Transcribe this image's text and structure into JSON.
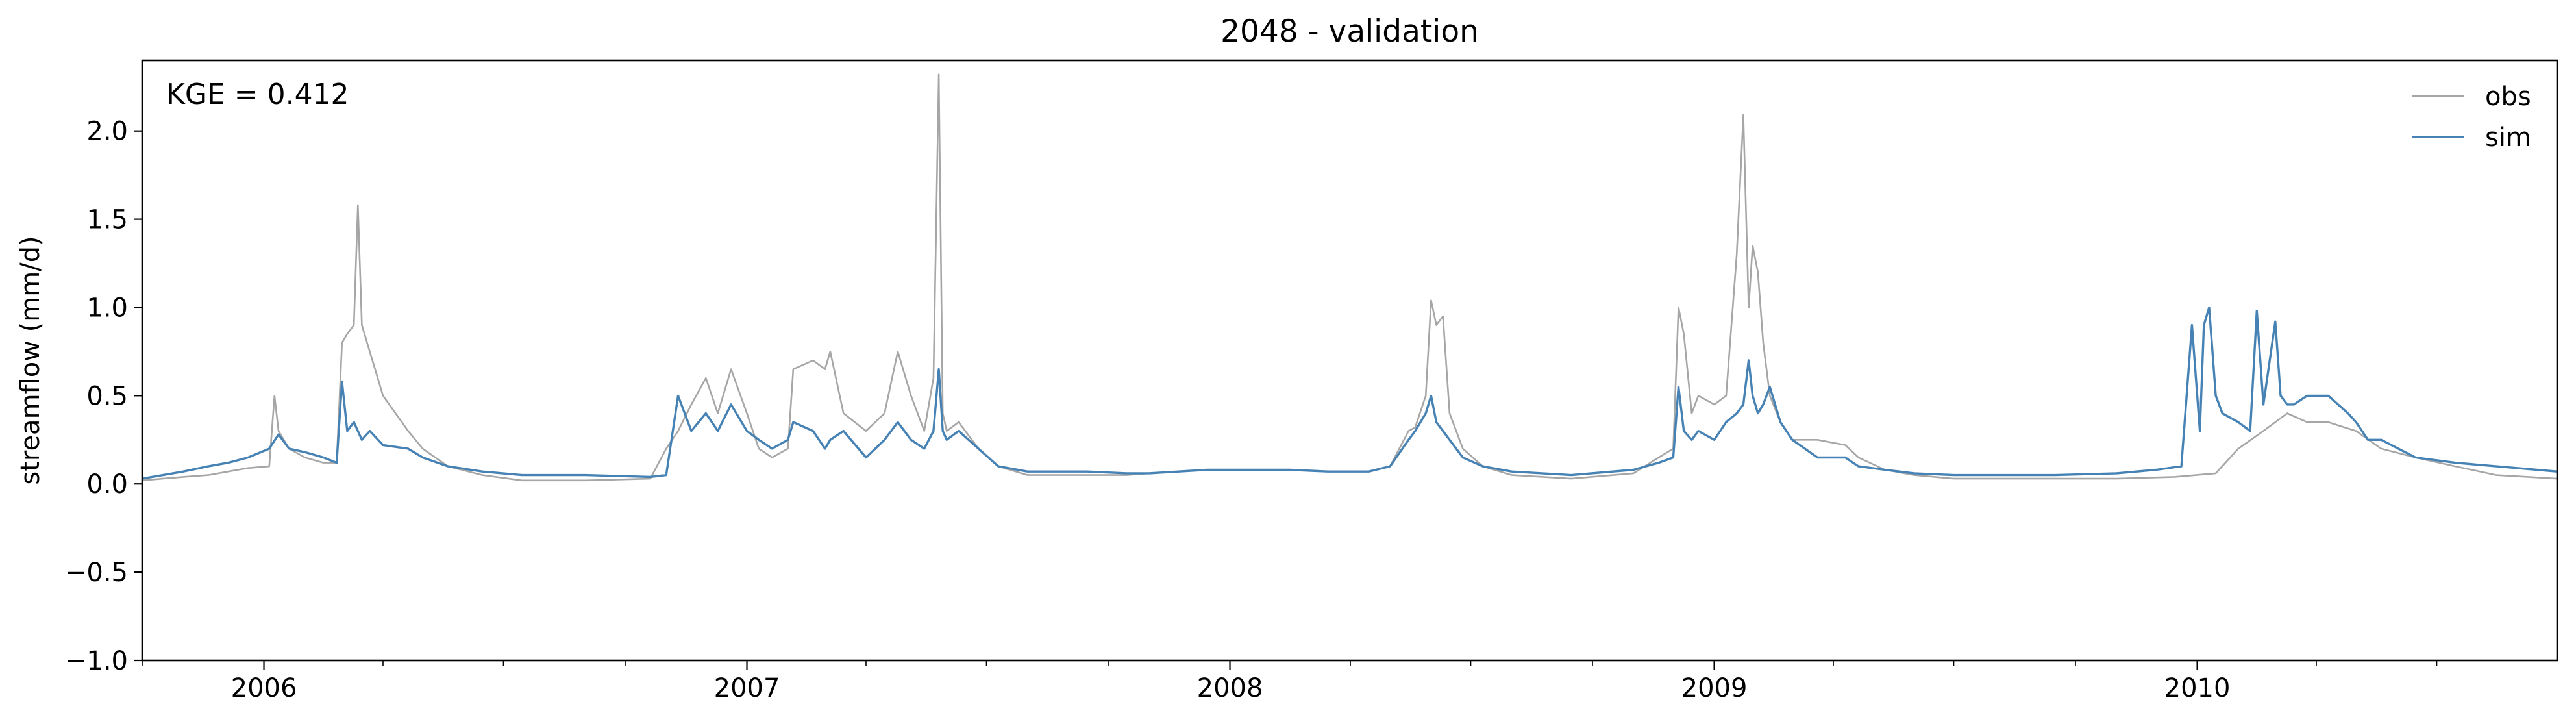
{
  "chart_data": {
    "type": "line",
    "title": "2048 - validation",
    "xlabel": "",
    "ylabel": "streamflow (mm/d)",
    "annotation": "KGE = 0.412",
    "xlim": [
      "2005-10-01",
      "2010-09-30"
    ],
    "ylim": [
      -1.0,
      2.4
    ],
    "y_ticks": [
      -1.0,
      -0.5,
      0.0,
      0.5,
      1.0,
      1.5,
      2.0
    ],
    "y_tick_labels": [
      "−1.0",
      "−0.5",
      "0.0",
      "0.5",
      "1.0",
      "1.5",
      "2.0"
    ],
    "x_ticks": [
      "2006-01-01",
      "2007-01-01",
      "2008-01-01",
      "2009-01-01",
      "2010-01-01"
    ],
    "x_tick_labels": [
      "2006",
      "2007",
      "2008",
      "2009",
      "2010"
    ],
    "legend_position": "top-right",
    "grid": false,
    "series": [
      {
        "name": "obs",
        "color": "#a6a6a6",
        "x": [
          "2005-10-01",
          "2005-11-01",
          "2005-11-20",
          "2005-12-05",
          "2005-12-20",
          "2006-01-05",
          "2006-01-09",
          "2006-01-12",
          "2006-01-20",
          "2006-02-01",
          "2006-02-15",
          "2006-02-25",
          "2006-03-01",
          "2006-03-05",
          "2006-03-10",
          "2006-03-13",
          "2006-03-16",
          "2006-03-20",
          "2006-04-01",
          "2006-04-20",
          "2006-05-01",
          "2006-05-20",
          "2006-06-15",
          "2006-07-15",
          "2006-09-01",
          "2006-10-20",
          "2006-11-01",
          "2006-11-10",
          "2006-11-20",
          "2006-12-01",
          "2006-12-10",
          "2006-12-20",
          "2007-01-01",
          "2007-01-10",
          "2007-01-20",
          "2007-02-01",
          "2007-02-05",
          "2007-02-20",
          "2007-03-01",
          "2007-03-05",
          "2007-03-15",
          "2007-04-01",
          "2007-04-15",
          "2007-04-25",
          "2007-05-05",
          "2007-05-15",
          "2007-05-22",
          "2007-05-26",
          "2007-05-29",
          "2007-06-01",
          "2007-06-10",
          "2007-06-25",
          "2007-07-10",
          "2007-08-01",
          "2007-09-15",
          "2007-10-15",
          "2007-11-01",
          "2007-12-15",
          "2008-02-15",
          "2008-03-15",
          "2008-04-15",
          "2008-05-01",
          "2008-05-15",
          "2008-05-20",
          "2008-05-28",
          "2008-06-01",
          "2008-06-05",
          "2008-06-10",
          "2008-06-15",
          "2008-06-25",
          "2008-07-10",
          "2008-08-01",
          "2008-09-15",
          "2008-11-01",
          "2008-11-20",
          "2008-12-01",
          "2008-12-05",
          "2008-12-09",
          "2008-12-15",
          "2008-12-20",
          "2009-01-01",
          "2009-01-10",
          "2009-01-18",
          "2009-01-23",
          "2009-01-27",
          "2009-01-30",
          "2009-02-03",
          "2009-02-07",
          "2009-02-12",
          "2009-02-20",
          "2009-03-01",
          "2009-03-20",
          "2009-04-10",
          "2009-04-20",
          "2009-05-10",
          "2009-06-01",
          "2009-07-01",
          "2009-08-01",
          "2009-09-15",
          "2009-11-01",
          "2009-12-15",
          "2010-01-15",
          "2010-02-01",
          "2010-02-20",
          "2010-03-10",
          "2010-03-25",
          "2010-04-10",
          "2010-05-01",
          "2010-05-20",
          "2010-06-15",
          "2010-07-15",
          "2010-08-15",
          "2010-09-30"
        ],
        "values": [
          0.02,
          0.04,
          0.05,
          0.07,
          0.09,
          0.1,
          0.5,
          0.3,
          0.2,
          0.15,
          0.12,
          0.12,
          0.8,
          0.85,
          0.9,
          1.58,
          0.9,
          0.8,
          0.5,
          0.3,
          0.2,
          0.1,
          0.05,
          0.02,
          0.02,
          0.03,
          0.2,
          0.3,
          0.45,
          0.6,
          0.4,
          0.65,
          0.4,
          0.2,
          0.15,
          0.2,
          0.65,
          0.7,
          0.65,
          0.75,
          0.4,
          0.3,
          0.4,
          0.75,
          0.5,
          0.3,
          0.6,
          2.32,
          0.4,
          0.3,
          0.35,
          0.2,
          0.1,
          0.05,
          0.05,
          0.05,
          0.06,
          0.08,
          0.08,
          0.07,
          0.07,
          0.1,
          0.3,
          0.32,
          0.5,
          1.04,
          0.9,
          0.95,
          0.4,
          0.2,
          0.1,
          0.05,
          0.03,
          0.06,
          0.15,
          0.2,
          1.0,
          0.85,
          0.4,
          0.5,
          0.45,
          0.5,
          1.3,
          2.09,
          1.0,
          1.35,
          1.2,
          0.8,
          0.5,
          0.35,
          0.25,
          0.25,
          0.22,
          0.15,
          0.08,
          0.05,
          0.03,
          0.03,
          0.03,
          0.03,
          0.04,
          0.06,
          0.2,
          0.3,
          0.4,
          0.35,
          0.35,
          0.3,
          0.2,
          0.15,
          0.1,
          0.05,
          0.03
        ]
      },
      {
        "name": "sim",
        "color": "#4682b4",
        "x": [
          "2005-10-01",
          "2005-11-01",
          "2005-11-20",
          "2005-12-05",
          "2005-12-20",
          "2006-01-05",
          "2006-01-12",
          "2006-01-20",
          "2006-02-01",
          "2006-02-15",
          "2006-02-25",
          "2006-03-01",
          "2006-03-05",
          "2006-03-10",
          "2006-03-16",
          "2006-03-22",
          "2006-04-01",
          "2006-04-20",
          "2006-05-01",
          "2006-05-20",
          "2006-06-15",
          "2006-07-15",
          "2006-09-01",
          "2006-10-20",
          "2006-11-01",
          "2006-11-10",
          "2006-11-20",
          "2006-12-01",
          "2006-12-10",
          "2006-12-20",
          "2007-01-01",
          "2007-01-10",
          "2007-01-20",
          "2007-02-01",
          "2007-02-05",
          "2007-02-20",
          "2007-03-01",
          "2007-03-05",
          "2007-03-15",
          "2007-04-01",
          "2007-04-15",
          "2007-04-25",
          "2007-05-05",
          "2007-05-15",
          "2007-05-22",
          "2007-05-26",
          "2007-05-29",
          "2007-06-01",
          "2007-06-10",
          "2007-06-25",
          "2007-07-10",
          "2007-08-01",
          "2007-09-15",
          "2007-10-15",
          "2007-11-01",
          "2007-12-15",
          "2008-02-15",
          "2008-03-15",
          "2008-04-15",
          "2008-05-01",
          "2008-05-15",
          "2008-05-20",
          "2008-05-28",
          "2008-06-01",
          "2008-06-05",
          "2008-06-10",
          "2008-06-15",
          "2008-06-25",
          "2008-07-10",
          "2008-08-01",
          "2008-09-15",
          "2008-11-01",
          "2008-11-20",
          "2008-12-01",
          "2008-12-05",
          "2008-12-09",
          "2008-12-15",
          "2008-12-20",
          "2009-01-01",
          "2009-01-10",
          "2009-01-18",
          "2009-01-23",
          "2009-01-27",
          "2009-01-30",
          "2009-02-03",
          "2009-02-07",
          "2009-02-12",
          "2009-02-20",
          "2009-03-01",
          "2009-03-20",
          "2009-04-10",
          "2009-04-20",
          "2009-05-10",
          "2009-06-01",
          "2009-07-01",
          "2009-08-01",
          "2009-09-15",
          "2009-11-01",
          "2009-12-01",
          "2009-12-20",
          "2009-12-28",
          "2010-01-03",
          "2010-01-06",
          "2010-01-10",
          "2010-01-15",
          "2010-01-20",
          "2010-02-01",
          "2010-02-10",
          "2010-02-15",
          "2010-02-20",
          "2010-03-01",
          "2010-03-05",
          "2010-03-10",
          "2010-03-15",
          "2010-03-25",
          "2010-04-10",
          "2010-04-25",
          "2010-05-01",
          "2010-05-10",
          "2010-05-20",
          "2010-06-15",
          "2010-07-15",
          "2010-08-15",
          "2010-09-30"
        ],
        "values": [
          0.03,
          0.07,
          0.1,
          0.12,
          0.15,
          0.2,
          0.28,
          0.2,
          0.18,
          0.15,
          0.12,
          0.58,
          0.3,
          0.35,
          0.25,
          0.3,
          0.22,
          0.2,
          0.15,
          0.1,
          0.07,
          0.05,
          0.05,
          0.04,
          0.05,
          0.5,
          0.3,
          0.4,
          0.3,
          0.45,
          0.3,
          0.25,
          0.2,
          0.25,
          0.35,
          0.3,
          0.2,
          0.25,
          0.3,
          0.15,
          0.25,
          0.35,
          0.25,
          0.2,
          0.3,
          0.65,
          0.3,
          0.25,
          0.3,
          0.2,
          0.1,
          0.07,
          0.07,
          0.06,
          0.06,
          0.08,
          0.08,
          0.07,
          0.07,
          0.1,
          0.25,
          0.3,
          0.4,
          0.5,
          0.35,
          0.3,
          0.25,
          0.15,
          0.1,
          0.07,
          0.05,
          0.08,
          0.12,
          0.15,
          0.55,
          0.3,
          0.25,
          0.3,
          0.25,
          0.35,
          0.4,
          0.45,
          0.7,
          0.5,
          0.4,
          0.45,
          0.55,
          0.35,
          0.25,
          0.15,
          0.15,
          0.1,
          0.08,
          0.06,
          0.05,
          0.05,
          0.05,
          0.06,
          0.08,
          0.1,
          0.9,
          0.3,
          0.9,
          1.0,
          0.5,
          0.4,
          0.35,
          0.3,
          0.98,
          0.45,
          0.92,
          0.5,
          0.45,
          0.45,
          0.5,
          0.5,
          0.4,
          0.35,
          0.25,
          0.25,
          0.15,
          0.12,
          0.1,
          0.07
        ]
      }
    ]
  }
}
